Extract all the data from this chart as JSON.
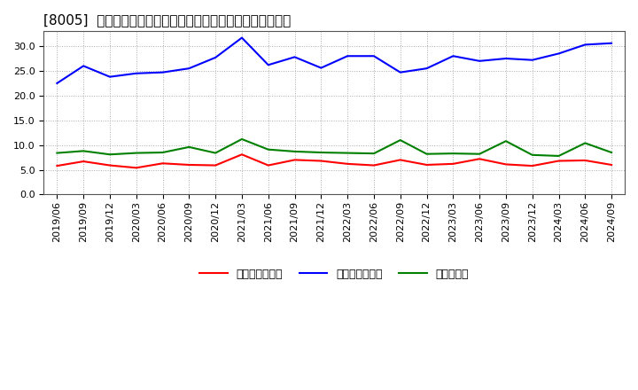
{
  "title": "[8005]  売上債権回転率、買入債務回転率、在庫回転率の推移",
  "dates": [
    "2019/06",
    "2019/09",
    "2019/12",
    "2020/03",
    "2020/06",
    "2020/09",
    "2020/12",
    "2021/03",
    "2021/06",
    "2021/09",
    "2021/12",
    "2022/03",
    "2022/06",
    "2022/09",
    "2022/12",
    "2023/03",
    "2023/06",
    "2023/09",
    "2023/12",
    "2024/03",
    "2024/06",
    "2024/09"
  ],
  "receivables_turnover": [
    5.8,
    6.7,
    5.9,
    5.4,
    6.3,
    6.0,
    5.9,
    8.1,
    5.9,
    7.0,
    6.8,
    6.2,
    5.9,
    7.0,
    6.0,
    6.2,
    7.2,
    6.1,
    5.8,
    6.8,
    6.9,
    6.0
  ],
  "payables_turnover": [
    22.5,
    26.0,
    23.8,
    24.5,
    24.7,
    25.5,
    27.7,
    31.7,
    26.2,
    27.8,
    25.6,
    28.0,
    28.0,
    24.7,
    25.5,
    28.0,
    27.0,
    27.5,
    27.2,
    28.5,
    30.3,
    30.6
  ],
  "inventory_turnover": [
    8.4,
    8.8,
    8.1,
    8.4,
    8.5,
    9.6,
    8.4,
    11.2,
    9.1,
    8.7,
    8.5,
    8.4,
    8.3,
    11.0,
    8.2,
    8.3,
    8.2,
    10.8,
    8.0,
    7.8,
    10.4,
    8.5
  ],
  "receivables_color": "#ff0000",
  "payables_color": "#0000ff",
  "inventory_color": "#008000",
  "bg_color": "#ffffff",
  "plot_bg_color": "#ffffff",
  "ylim": [
    0.0,
    33.0
  ],
  "yticks": [
    0.0,
    5.0,
    10.0,
    15.0,
    20.0,
    25.0,
    30.0
  ],
  "legend_labels": [
    "売上債権回転率",
    "買入債務回転率",
    "在庫回転率"
  ],
  "grid_color": "#aaaaaa",
  "line_width": 1.5,
  "title_fontsize": 11,
  "tick_fontsize": 8,
  "legend_fontsize": 9
}
